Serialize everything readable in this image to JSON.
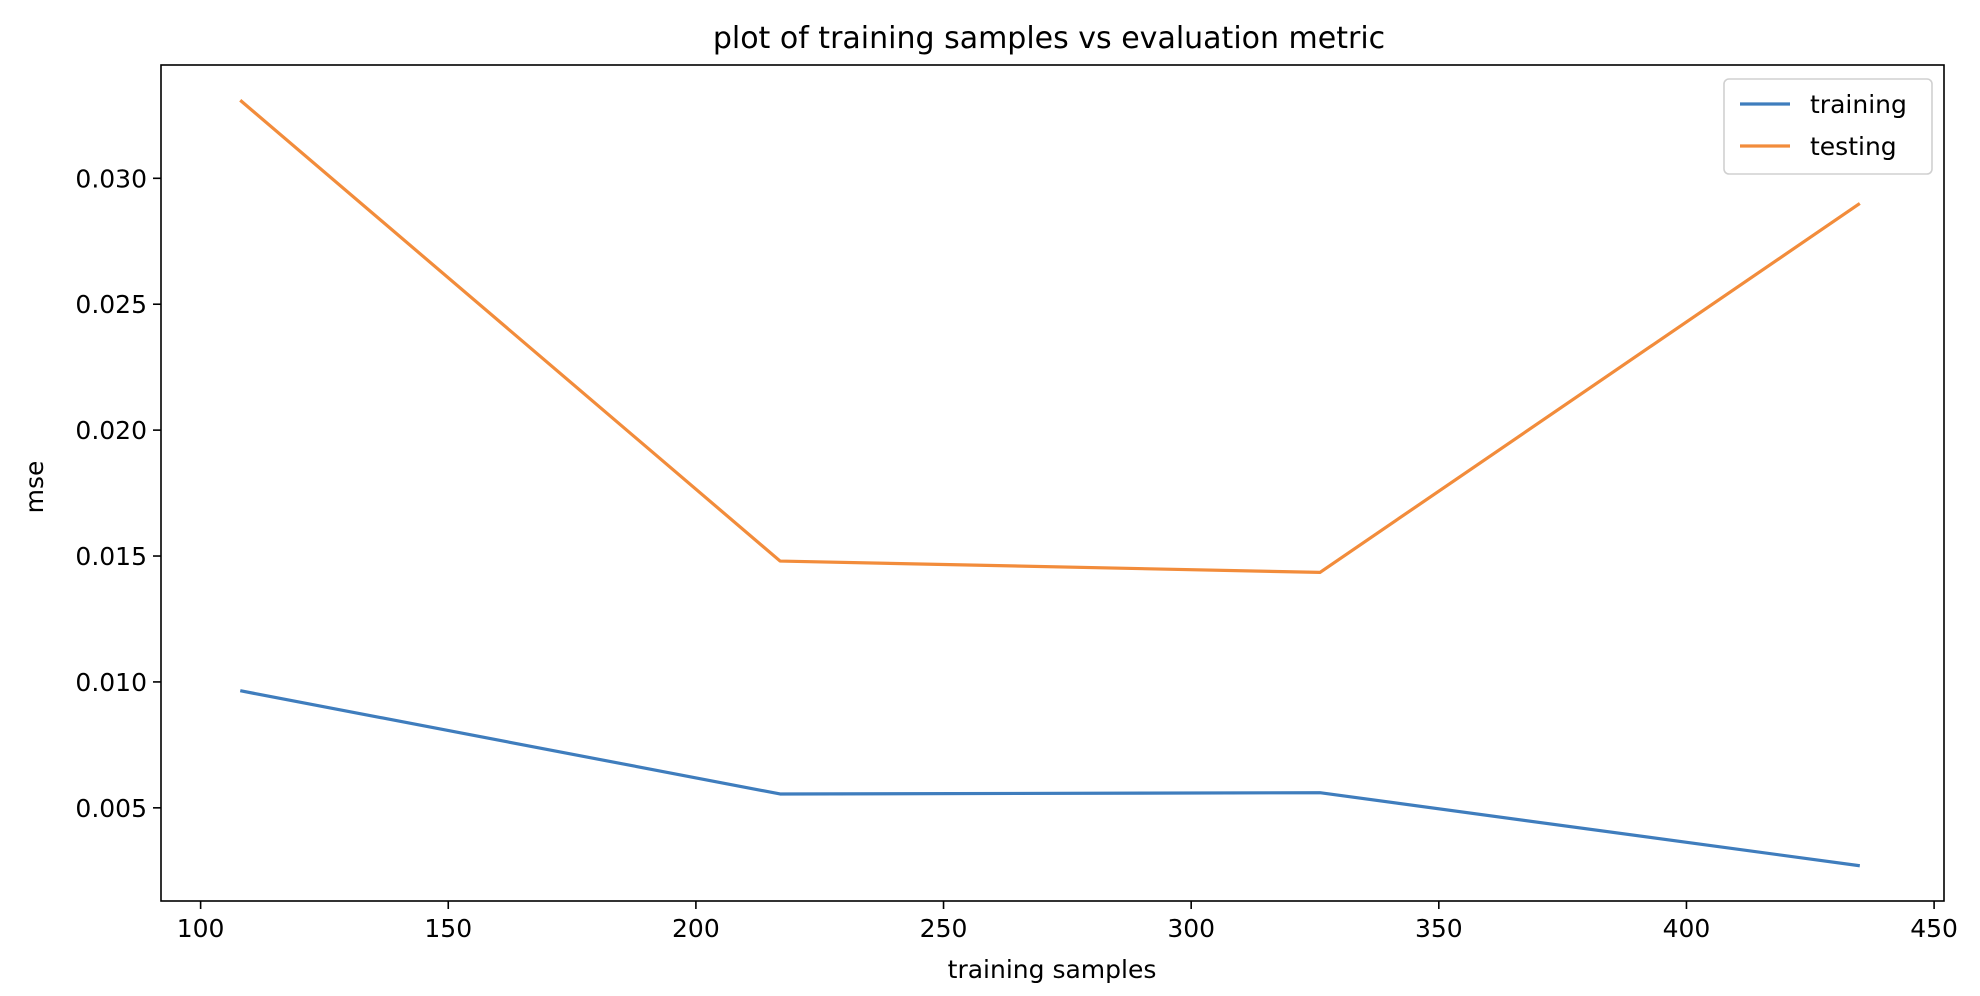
{
  "colors": {
    "training": "#3f7dbd",
    "testing": "#f28c3b"
  },
  "chart_data": {
    "type": "line",
    "title": "plot of training samples vs evaluation metric",
    "xlabel": "training samples",
    "ylabel": "mse",
    "xlim": [
      92,
      452
    ],
    "ylim": [
      0.0013,
      0.0345
    ],
    "xticks": [
      100,
      150,
      200,
      250,
      300,
      350,
      400,
      450
    ],
    "xtick_labels": [
      "100",
      "150",
      "200",
      "250",
      "300",
      "350",
      "400",
      "450"
    ],
    "yticks": [
      0.005,
      0.01,
      0.015,
      0.02,
      0.025,
      0.03
    ],
    "ytick_labels": [
      "0.005",
      "0.010",
      "0.015",
      "0.020",
      "0.025",
      "0.030"
    ],
    "grid": false,
    "legend_position": "top-right",
    "x": [
      108,
      217,
      326,
      435
    ],
    "series": [
      {
        "name": "training",
        "values": [
          0.00965,
          0.00555,
          0.0056,
          0.0027
        ]
      },
      {
        "name": "testing",
        "values": [
          0.0331,
          0.0148,
          0.01435,
          0.029
        ]
      }
    ]
  }
}
